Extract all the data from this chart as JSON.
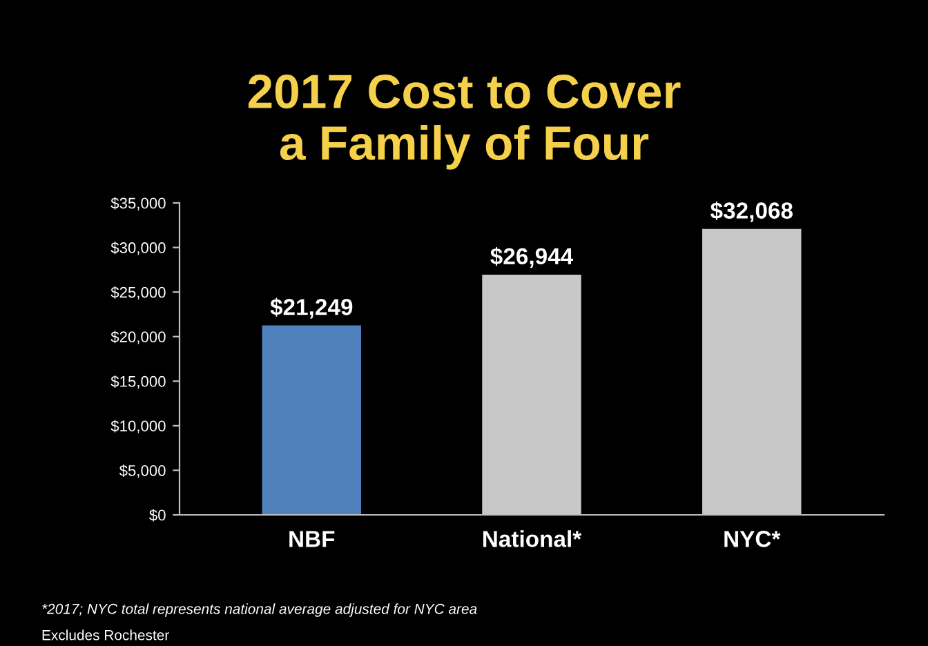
{
  "chart_data": {
    "type": "bar",
    "title": "2017 Cost to Cover\na Family of Four",
    "categories": [
      "NBF",
      "National*",
      "NYC*"
    ],
    "values": [
      21249,
      26944,
      32068
    ],
    "colors": [
      "#4f81bd",
      "#c8c8c8",
      "#c8c8c8"
    ],
    "value_labels": [
      "$21,249",
      "$26,944",
      "$32,068"
    ],
    "ylim": [
      0,
      35000
    ],
    "yticks": [
      {
        "value": 0,
        "label": "$0"
      },
      {
        "value": 5000,
        "label": "$5,000"
      },
      {
        "value": 10000,
        "label": "$10,000"
      },
      {
        "value": 15000,
        "label": "$15,000"
      },
      {
        "value": 20000,
        "label": "$20,000"
      },
      {
        "value": 25000,
        "label": "$25,000"
      },
      {
        "value": 30000,
        "label": "$30,000"
      },
      {
        "value": 35000,
        "label": "$35,000"
      }
    ],
    "grid": false,
    "annotations": [
      "*2017; NYC total represents national average adjusted for NYC area",
      "Excludes Rochester"
    ]
  }
}
